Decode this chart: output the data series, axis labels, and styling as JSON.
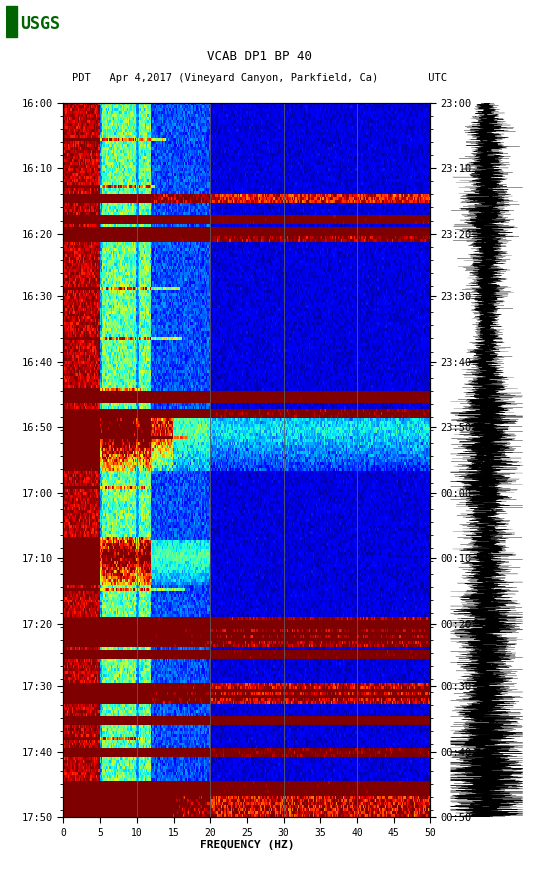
{
  "title_line1": "VCAB DP1 BP 40",
  "title_line2": "PDT   Apr 4,2017 (Vineyard Canyon, Parkfield, Ca)        UTC",
  "xlabel": "FREQUENCY (HZ)",
  "freq_min": 0,
  "freq_max": 50,
  "freq_ticks": [
    0,
    5,
    10,
    15,
    20,
    25,
    30,
    35,
    40,
    45,
    50
  ],
  "time_left_labels": [
    "16:00",
    "16:10",
    "16:20",
    "16:30",
    "16:40",
    "16:50",
    "17:00",
    "17:10",
    "17:20",
    "17:30",
    "17:40",
    "17:50"
  ],
  "time_right_labels": [
    "23:00",
    "23:10",
    "23:20",
    "23:30",
    "23:40",
    "23:50",
    "00:00",
    "00:10",
    "00:20",
    "00:30",
    "00:40",
    "00:50"
  ],
  "n_time_rows": 240,
  "n_freq_cols": 300,
  "bg_color": "#ffffff",
  "usgs_logo_color": "#006400",
  "vertical_lines_freq": [
    10,
    20,
    30,
    40
  ],
  "colormap": "jet",
  "random_seed": 42
}
